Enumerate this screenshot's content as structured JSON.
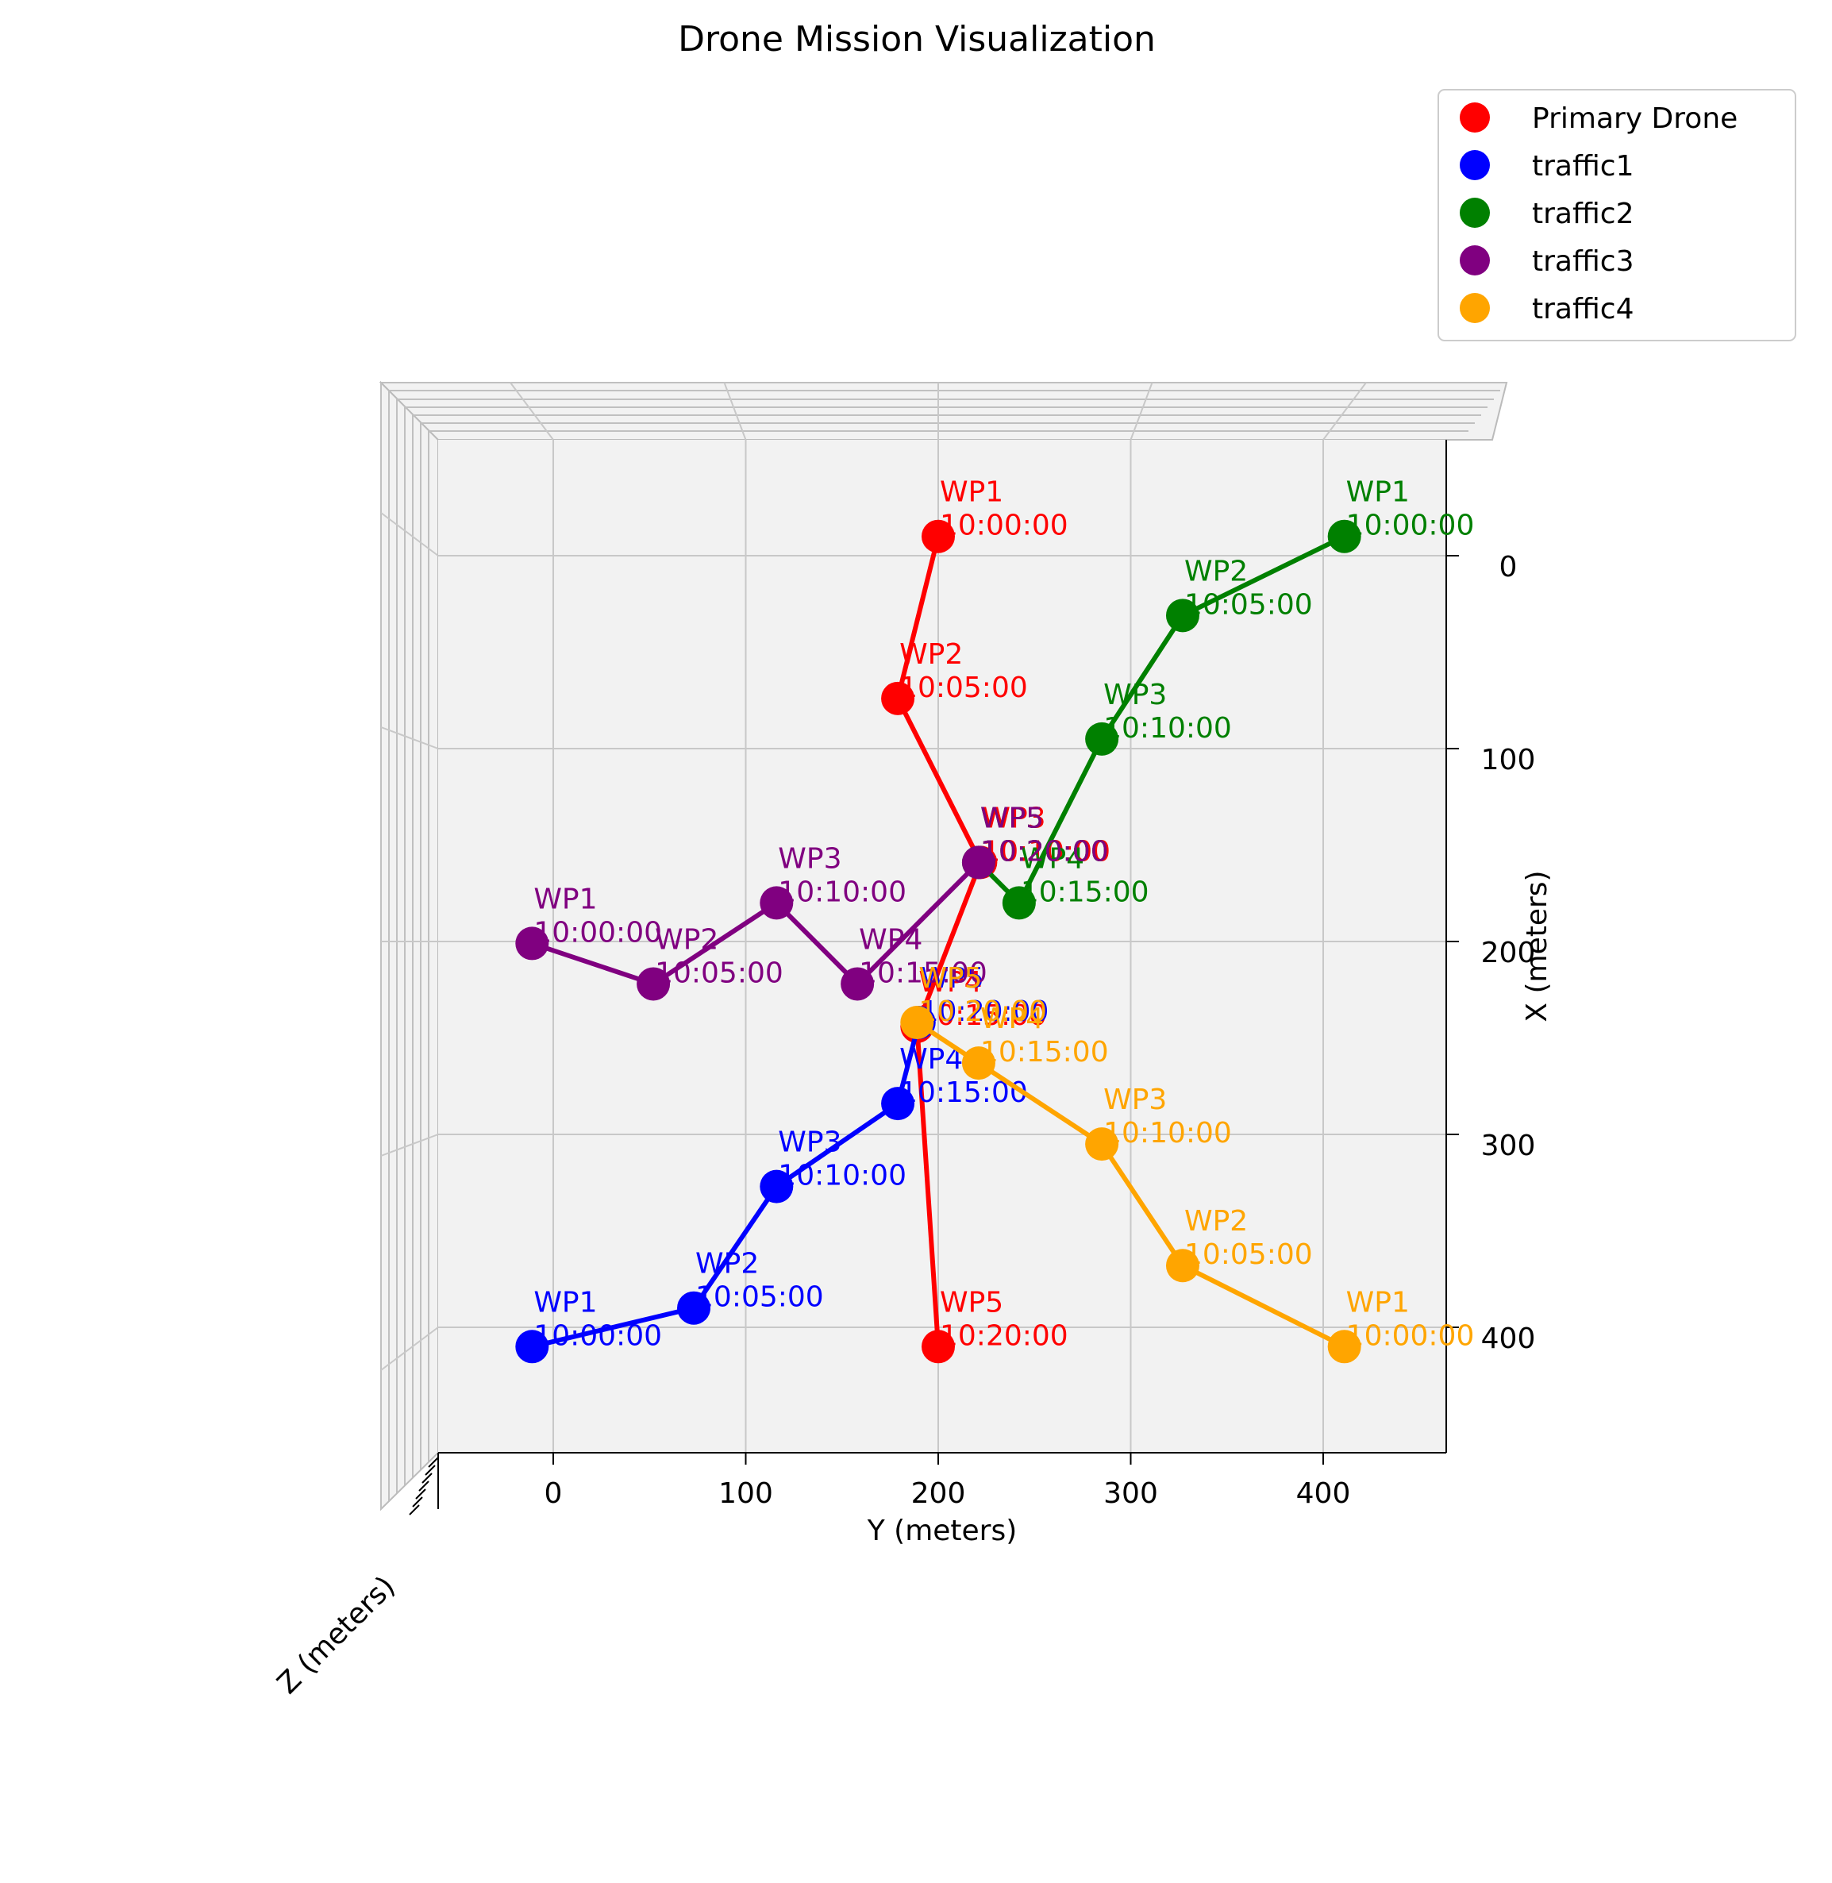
{
  "chart_data": {
    "type": "line",
    "title": "Drone Mission Visualization",
    "xlabel": "Y (meters)",
    "ylabel": "X (meters)",
    "zlabel": "Z (meters)",
    "view": "3d, viewed from above (X axis down, Y axis across)",
    "y_ticks": [
      0,
      100,
      200,
      300,
      400
    ],
    "x_ticks": [
      0,
      100,
      200,
      300,
      400
    ],
    "y_range": [
      -60,
      460
    ],
    "x_range": [
      -60,
      460
    ],
    "grid": true,
    "legend_position": "top-right",
    "series": [
      {
        "name": "Primary Drone",
        "color": "#ff0000",
        "points": [
          {
            "label": "WP1",
            "time": "10:00:00",
            "y": 200,
            "x": -10
          },
          {
            "label": "WP2",
            "time": "10:05:00",
            "y": 179,
            "x": 74
          },
          {
            "label": "WP3",
            "time": "10:10:00",
            "y": 222,
            "x": 159
          },
          {
            "label": "WP4",
            "time": "10:15:00",
            "y": 189,
            "x": 244
          },
          {
            "label": "WP5",
            "time": "10:20:00",
            "y": 200,
            "x": 410
          }
        ]
      },
      {
        "name": "traffic1",
        "color": "#0000ff",
        "points": [
          {
            "label": "WP1",
            "time": "10:00:00",
            "y": -11,
            "x": 410
          },
          {
            "label": "WP2",
            "time": "10:05:00",
            "y": 73,
            "x": 390
          },
          {
            "label": "WP3",
            "time": "10:10:00",
            "y": 116,
            "x": 327
          },
          {
            "label": "WP4",
            "time": "10:15:00",
            "y": 179,
            "x": 284
          },
          {
            "label": "WP5",
            "time": "10:20:00",
            "y": 190,
            "x": 242
          }
        ]
      },
      {
        "name": "traffic2",
        "color": "#008000",
        "points": [
          {
            "label": "WP1",
            "time": "10:00:00",
            "y": 411,
            "x": -10
          },
          {
            "label": "WP2",
            "time": "10:05:00",
            "y": 327,
            "x": 31
          },
          {
            "label": "WP3",
            "time": "10:10:00",
            "y": 285,
            "x": 95
          },
          {
            "label": "WP4",
            "time": "10:15:00",
            "y": 242,
            "x": 180
          },
          {
            "label": "WP5",
            "time": "10:20:00",
            "y": 221,
            "x": 159
          }
        ]
      },
      {
        "name": "traffic3",
        "color": "#800080",
        "points": [
          {
            "label": "WP1",
            "time": "10:00:00",
            "y": -11,
            "x": 201
          },
          {
            "label": "WP2",
            "time": "10:05:00",
            "y": 52,
            "x": 222
          },
          {
            "label": "WP3",
            "time": "10:10:00",
            "y": 116,
            "x": 180
          },
          {
            "label": "WP4",
            "time": "10:15:00",
            "y": 158,
            "x": 222
          },
          {
            "label": "WP5",
            "time": "10:20:00",
            "y": 221,
            "x": 159
          }
        ]
      },
      {
        "name": "traffic4",
        "color": "#ffa500",
        "points": [
          {
            "label": "WP1",
            "time": "10:00:00",
            "y": 411,
            "x": 410
          },
          {
            "label": "WP2",
            "time": "10:05:00",
            "y": 327,
            "x": 368
          },
          {
            "label": "WP3",
            "time": "10:10:00",
            "y": 285,
            "x": 305
          },
          {
            "label": "WP4",
            "time": "10:15:00",
            "y": 221,
            "x": 263
          },
          {
            "label": "WP5",
            "time": "10:20:00",
            "y": 189,
            "x": 242
          }
        ]
      }
    ]
  }
}
